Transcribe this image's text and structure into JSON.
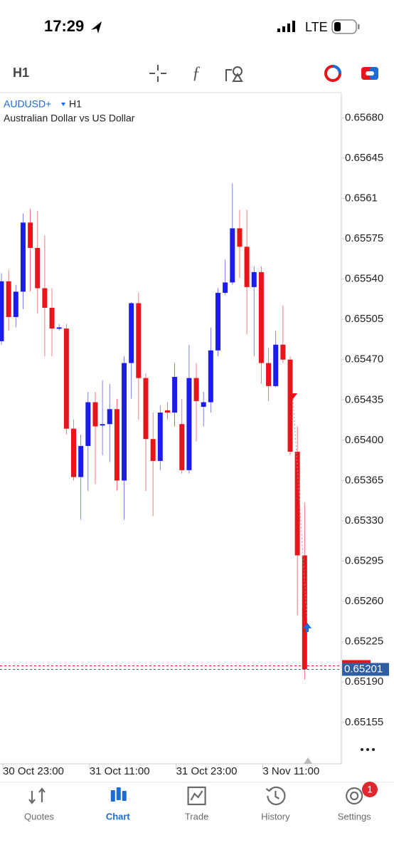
{
  "status_bar": {
    "time": "17:29",
    "network": "LTE"
  },
  "toolbar": {
    "timeframe": "H1"
  },
  "chart_data": {
    "type": "candlestick",
    "symbol": "AUDUSD+",
    "timeframe": "H1",
    "title": "Australian Dollar vs US Dollar",
    "categories": [
      "30 Oct 23:00",
      null,
      null,
      null,
      null,
      null,
      null,
      null,
      null,
      null,
      null,
      null,
      "31 Oct 11:00",
      null,
      null,
      null,
      null,
      null,
      null,
      null,
      null,
      null,
      null,
      null,
      "31 Oct 23:00",
      null,
      null,
      null,
      null,
      null,
      null,
      null,
      null,
      null,
      null,
      null,
      "3 Nov 11:00",
      null,
      null,
      null,
      null,
      null,
      null
    ],
    "open": [
      0.65486,
      0.65538,
      0.65507,
      0.65529,
      0.65589,
      0.65567,
      0.65532,
      0.65515,
      0.65497,
      0.65497,
      0.6541,
      0.65368,
      0.65395,
      0.65433,
      0.65413,
      0.65414,
      0.65427,
      0.65365,
      0.65467,
      0.65519,
      0.65454,
      0.65401,
      0.65382,
      0.65426,
      0.65424,
      0.65414,
      0.65374,
      0.65454,
      0.65429,
      0.65433,
      0.65478,
      0.65528,
      0.65537,
      0.65584,
      0.65568,
      0.65533,
      0.65546,
      0.65467,
      0.65447,
      0.65483,
      0.6547,
      0.6539,
      0.653
    ],
    "high": [
      0.65545,
      0.65548,
      0.65535,
      0.65597,
      0.65601,
      0.65599,
      0.65578,
      0.65532,
      0.65501,
      0.65501,
      0.65418,
      0.65405,
      0.65442,
      0.65442,
      0.65452,
      0.65449,
      0.65436,
      0.65473,
      0.6552,
      0.65528,
      0.65458,
      0.65424,
      0.6543,
      0.65433,
      0.65467,
      0.65436,
      0.65483,
      0.65467,
      0.65442,
      0.65498,
      0.65532,
      0.65557,
      0.65623,
      0.656,
      0.656,
      0.65551,
      0.65551,
      0.6548,
      0.65495,
      0.65517,
      0.65473,
      0.65412,
      0.65346
    ],
    "low": [
      0.65483,
      0.65495,
      0.65498,
      0.65514,
      0.65529,
      0.6551,
      0.65473,
      0.65473,
      0.65495,
      0.65405,
      0.65365,
      0.65331,
      0.65356,
      0.65362,
      0.65387,
      0.65381,
      0.65356,
      0.65331,
      0.65436,
      0.65418,
      0.65356,
      0.65334,
      0.65374,
      0.65418,
      0.65412,
      0.65371,
      0.65371,
      0.65399,
      0.65412,
      0.65424,
      0.65473,
      0.65526,
      0.65535,
      0.65541,
      0.65492,
      0.65473,
      0.65449,
      0.65434,
      0.65446,
      0.65467,
      0.65387,
      0.65248,
      0.65192
    ],
    "close": [
      0.65538,
      0.65507,
      0.65529,
      0.65589,
      0.65567,
      0.65532,
      0.65515,
      0.65497,
      0.65498,
      0.6541,
      0.65368,
      0.65395,
      0.65433,
      0.65412,
      0.65414,
      0.65427,
      0.65365,
      0.65467,
      0.65519,
      0.65454,
      0.65401,
      0.65382,
      0.65424,
      0.65424,
      0.65455,
      0.65374,
      0.65454,
      0.65434,
      0.65433,
      0.65478,
      0.65528,
      0.65537,
      0.65584,
      0.65568,
      0.65533,
      0.65546,
      0.65467,
      0.65447,
      0.65483,
      0.6547,
      0.6539,
      0.653,
      0.65201
    ],
    "up_color": "#1c1cf0",
    "down_color": "#e8141c",
    "ylim": [
      0.65119,
      0.657
    ],
    "yticks": [
      {
        "value": 0.6568,
        "label": "0.65680"
      },
      0.65645,
      0.6561,
      0.65575,
      {
        "value": 0.6554,
        "label": "0.65540"
      },
      0.65505,
      {
        "value": 0.6547,
        "label": "0.65470"
      },
      0.65435,
      {
        "value": 0.654,
        "label": "0.65400"
      },
      0.65365,
      {
        "value": 0.6533,
        "label": "0.65330"
      },
      0.65295,
      {
        "value": 0.6526,
        "label": "0.65260"
      },
      0.65225,
      {
        "value": 0.6519,
        "label": "0.65190"
      },
      0.65155
    ],
    "current_price": 0.65201
  },
  "tab_bar": {
    "tabs": [
      "Quotes",
      "Chart",
      "Trade",
      "History",
      "Settings"
    ],
    "active": 1,
    "badge": 1
  }
}
